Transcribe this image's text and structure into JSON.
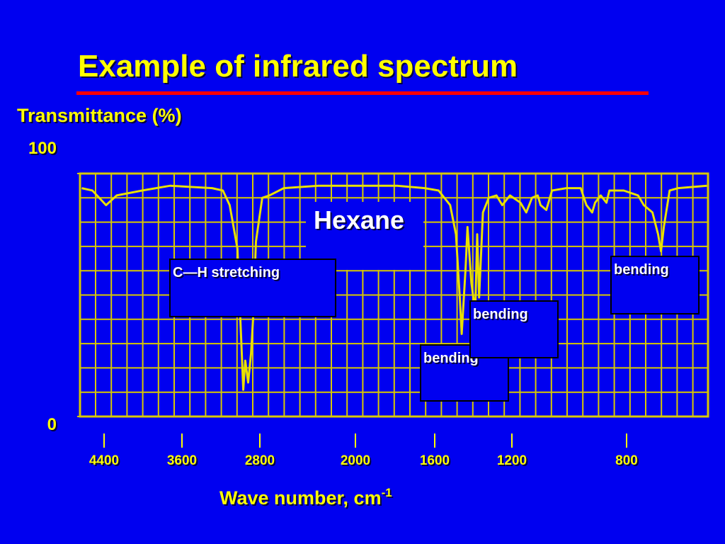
{
  "chart_data": {
    "type": "line",
    "title": "Example of infrared spectrum",
    "y_label": "Transmittance (%)",
    "x_label": "Wave number, cm",
    "x_label_sup": "-1",
    "ylim": [
      0,
      100
    ],
    "yticks": [
      0,
      100
    ],
    "xlim": [
      4650,
      520
    ],
    "xticks": [
      4400,
      3600,
      2800,
      2000,
      1600,
      1200,
      800
    ],
    "grid": true,
    "series": [
      {
        "name": "Hexane",
        "color": "#e8e000",
        "x": [
          4630,
          4520,
          4380,
          4270,
          4010,
          3720,
          3290,
          3180,
          3110,
          3030,
          3000,
          2970,
          2950,
          2920,
          2890,
          2870,
          2840,
          2780,
          2720,
          2600,
          2310,
          2010,
          1790,
          1650,
          1580,
          1520,
          1490,
          1470,
          1460,
          1440,
          1430,
          1410,
          1390,
          1380,
          1370,
          1350,
          1320,
          1280,
          1250,
          1210,
          1170,
          1150,
          1130,
          1110,
          1100,
          1080,
          1060,
          1010,
          960,
          940,
          920,
          910,
          890,
          870,
          860,
          810,
          760,
          740,
          710,
          690,
          680,
          670,
          650,
          620,
          520
        ],
        "values": [
          94,
          93,
          87,
          91,
          93,
          95,
          94,
          93,
          87,
          69,
          40,
          11,
          23,
          14,
          26,
          40,
          72,
          90,
          91,
          94,
          95,
          95,
          95,
          94,
          93,
          87,
          75,
          49,
          34,
          61,
          78,
          55,
          43,
          75,
          49,
          84,
          90,
          91,
          87,
          91,
          88,
          84,
          90,
          91,
          87,
          85,
          93,
          94,
          94,
          87,
          84,
          88,
          91,
          88,
          93,
          93,
          91,
          87,
          84,
          75,
          68,
          78,
          93,
          94,
          95
        ]
      }
    ],
    "annotations": [
      "C—H stretching",
      "bending",
      "bending",
      "bending"
    ]
  }
}
